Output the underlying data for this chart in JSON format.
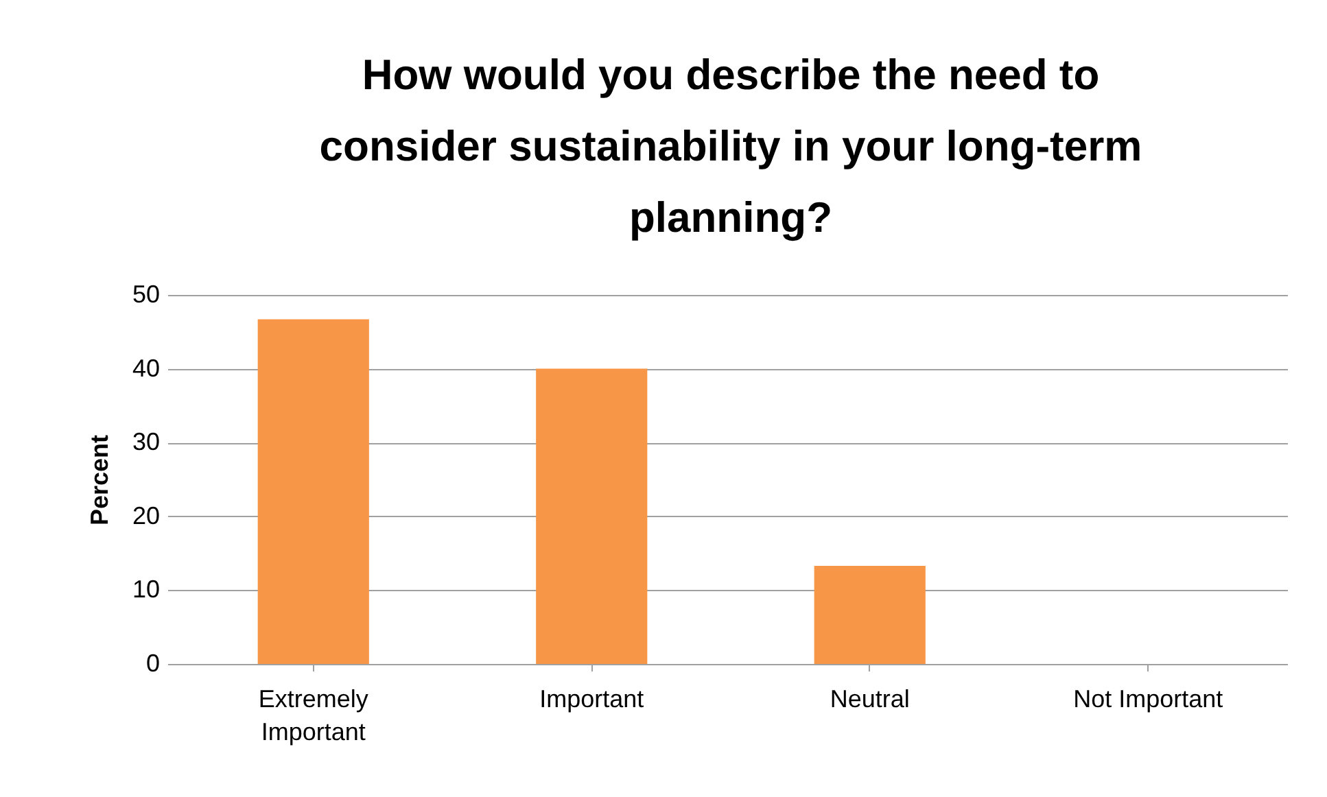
{
  "chart_data": {
    "type": "bar",
    "title": "How would you describe the need to consider sustainability in your long-term planning?",
    "ylabel": "Percent",
    "categories": [
      "Extremely Important",
      "Important",
      "Neutral",
      "Not Important"
    ],
    "values": [
      46.7,
      40,
      13.3,
      0
    ],
    "color": "#f79646",
    "ylim": [
      0,
      50
    ],
    "yticks": [
      0,
      10,
      20,
      30,
      40,
      50
    ],
    "grid": "y"
  }
}
